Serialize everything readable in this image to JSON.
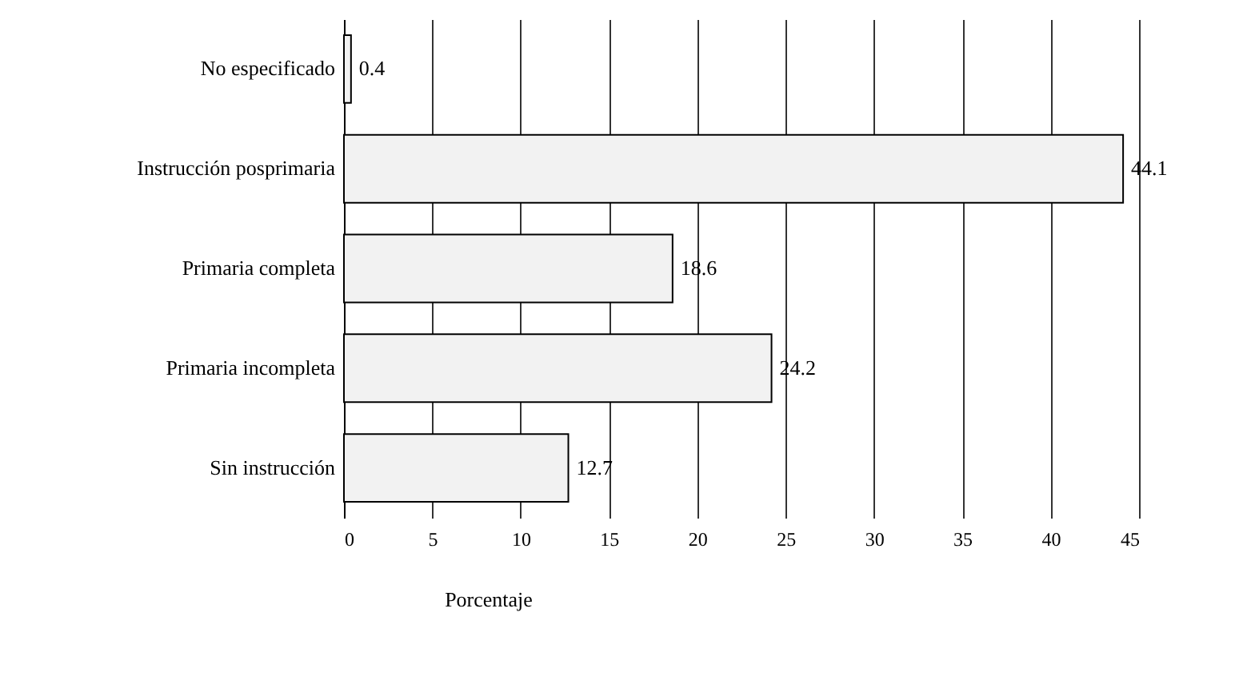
{
  "chart_data": {
    "type": "bar",
    "orientation": "horizontal",
    "categories": [
      "No especificado",
      "Instrucción posprimaria",
      "Primaria completa",
      "Primaria incompleta",
      "Sin instrucción"
    ],
    "values": [
      0.4,
      44.1,
      18.6,
      24.2,
      12.7
    ],
    "color": "#f2f2f2",
    "xlabel": "Porcentaje",
    "xlim": [
      0,
      45
    ],
    "xticks": [
      0,
      5,
      10,
      15,
      20,
      25,
      30,
      35,
      40,
      45
    ],
    "grid": "x",
    "data_labels": true
  }
}
